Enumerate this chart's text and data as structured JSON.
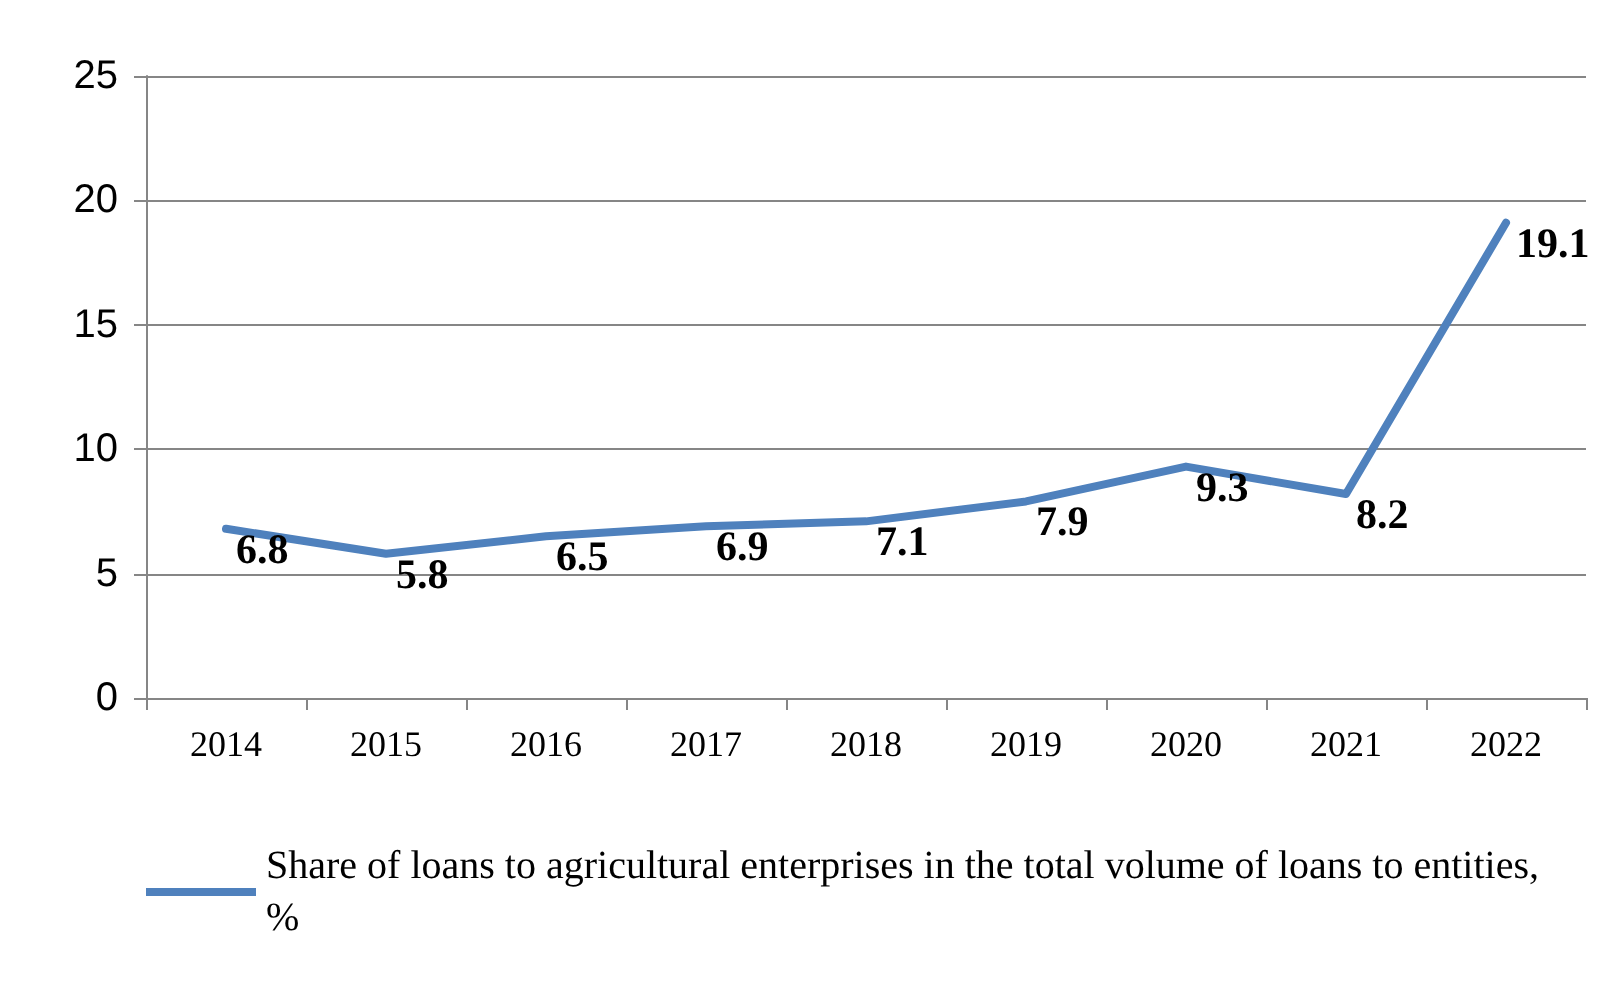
{
  "chart_data": {
    "type": "line",
    "categories": [
      "2014",
      "2015",
      "2016",
      "2017",
      "2018",
      "2019",
      "2020",
      "2021",
      "2022"
    ],
    "series": [
      {
        "name": "Share of loans to agricultural enterprises in the total volume of loans to entities, %",
        "color": "#4f81bd",
        "values": [
          6.8,
          5.8,
          6.5,
          6.9,
          7.1,
          7.9,
          9.3,
          8.2,
          19.1
        ]
      }
    ],
    "ylim": [
      0,
      25
    ],
    "yticks": [
      0,
      5,
      10,
      15,
      20,
      25
    ],
    "grid": "y",
    "legend": "bottom",
    "data_labels": true,
    "marker": "none",
    "line_style": "solid"
  }
}
